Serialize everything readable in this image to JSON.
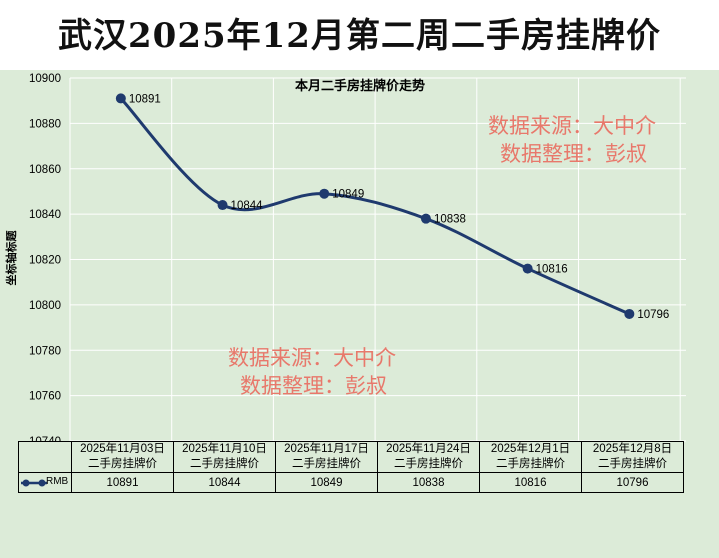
{
  "title": "武汉2025年12月第二周二手房挂牌价",
  "watermarks": [
    {
      "line1": "数据来源：大中介",
      "line2": "数据整理：彭叔"
    },
    {
      "line1": "数据来源：大中介",
      "line2": "数据整理：彭叔"
    }
  ],
  "colors": {
    "series": "#1f3a6e",
    "panel_background": "#dcebd8",
    "watermark": "#e8786b"
  },
  "chart_data": {
    "type": "line",
    "title": "本月二手房挂牌价走势",
    "xlabel": "",
    "ylabel": "坐标轴标题",
    "ylim": [
      10740,
      10900
    ],
    "yticks": [
      10740,
      10760,
      10780,
      10800,
      10820,
      10840,
      10860,
      10880,
      10900
    ],
    "grid": true,
    "smooth": true,
    "categories": [
      [
        "2025年11月03日",
        "二手房挂牌价"
      ],
      [
        "2025年11月10日",
        "二手房挂牌价"
      ],
      [
        "2025年11月17日",
        "二手房挂牌价"
      ],
      [
        "2025年11月24日",
        "二手房挂牌价"
      ],
      [
        "2025年12月1日",
        "二手房挂牌价"
      ],
      [
        "2025年12月8日",
        "二手房挂牌价"
      ]
    ],
    "series": [
      {
        "name": "RMB",
        "values": [
          10891,
          10844,
          10849,
          10838,
          10816,
          10796
        ]
      }
    ],
    "data_labels": true,
    "data_table": true
  }
}
